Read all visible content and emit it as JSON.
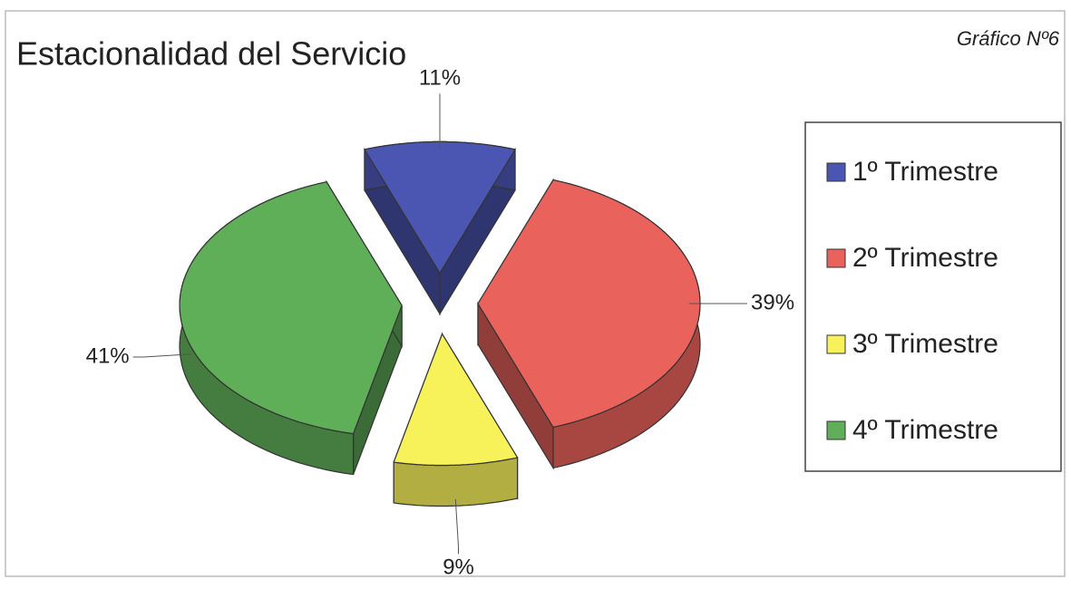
{
  "chart_data": {
    "type": "pie3d",
    "title": "Estacionalidad del Servicio",
    "annotation": "Gráfico Nº6",
    "categories": [
      "1º Trimestre",
      "2º Trimestre",
      "3º Trimestre",
      "4º Trimestre"
    ],
    "values": [
      11,
      39,
      9,
      41
    ],
    "value_labels": [
      "11%",
      "39%",
      "9%",
      "41%"
    ],
    "colors": [
      "#4b56b3",
      "#ea625c",
      "#f8f25a",
      "#5fae58"
    ],
    "legend": "right"
  }
}
